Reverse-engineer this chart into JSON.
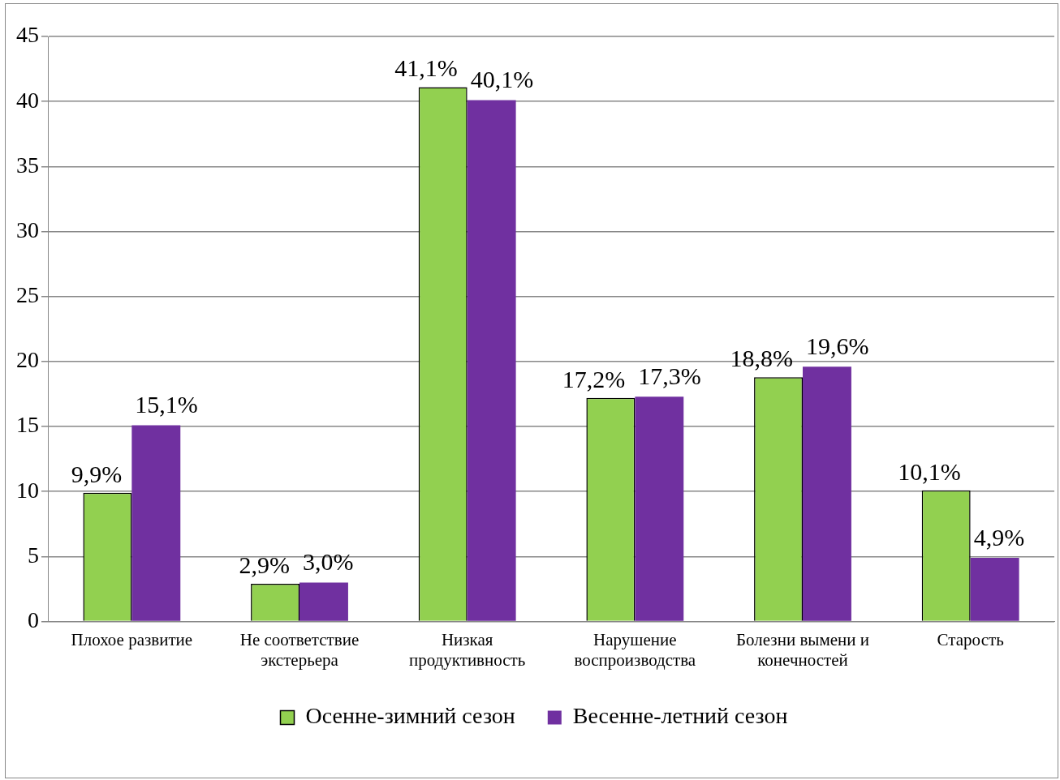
{
  "chart_data": {
    "type": "bar",
    "categories": [
      "Плохое развитие",
      "Не соответствие экстерьера",
      "Низкая продуктивность",
      "Нарушение воспроизводства",
      "Болезни вымени и конечностей",
      "Старость"
    ],
    "series": [
      {
        "name": "Осенне-зимний сезон",
        "color": "#92d050",
        "values": [
          9.9,
          2.9,
          41.1,
          17.2,
          18.8,
          10.1
        ],
        "value_labels": [
          "9,9%",
          "2,9%",
          "41,1%",
          "17,2%",
          "18,8%",
          "10,1%"
        ]
      },
      {
        "name": "Весенне-летний сезон",
        "color": "#7030a0",
        "values": [
          15.1,
          3.0,
          40.1,
          17.3,
          19.6,
          4.9
        ],
        "value_labels": [
          "15,1%",
          "3,0%",
          "40,1%",
          "17,3%",
          "19,6%",
          "4,9%"
        ]
      }
    ],
    "ylim": [
      0,
      45
    ],
    "yticks": [
      0,
      5,
      10,
      15,
      20,
      25,
      30,
      35,
      40,
      45
    ],
    "grid": "y",
    "legend": "bottom"
  }
}
